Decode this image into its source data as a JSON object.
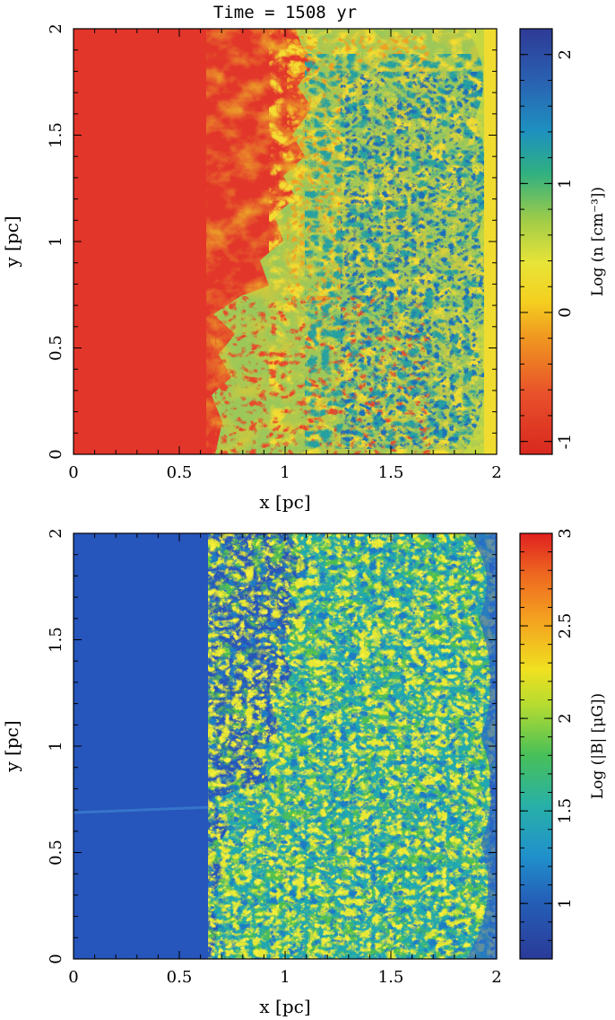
{
  "chart_data": [
    {
      "type": "heatmap",
      "title": "Time = 1508 yr",
      "xlabel": "x [pc]",
      "ylabel": "y [pc]",
      "xlim": [
        0,
        2
      ],
      "ylim": [
        0,
        2
      ],
      "xticks": [
        "0",
        "0.5",
        "1",
        "1.5",
        "2"
      ],
      "yticks": [
        "0",
        "0.5",
        "1",
        "1.5",
        "2"
      ],
      "colorbar": {
        "label": "Log (n [cm⁻³])",
        "range": [
          -1.1,
          2.2
        ],
        "ticks": [
          "-1",
          "0",
          "1",
          "2"
        ],
        "tick_values": [
          -1,
          0,
          1,
          2
        ],
        "colors": [
          "#e03028",
          "#f0a020",
          "#f0e030",
          "#a8d040",
          "#30b080",
          "#2090c8",
          "#3050b0"
        ]
      },
      "description_fields": {
        "ambient_color": "#e2362b",
        "front_x_min": 0.65,
        "front_x_max": 1.9
      }
    },
    {
      "type": "heatmap",
      "title": "",
      "xlabel": "x [pc]",
      "ylabel": "y [pc]",
      "xlim": [
        0,
        2
      ],
      "ylim": [
        0,
        2
      ],
      "xticks": [
        "0",
        "0.5",
        "1",
        "1.5",
        "2"
      ],
      "yticks": [
        "0",
        "0.5",
        "1",
        "1.5",
        "2"
      ],
      "colorbar": {
        "label": "Log (|B| [μG])",
        "range": [
          0.7,
          3.0
        ],
        "ticks": [
          "1",
          "1.5",
          "2",
          "2.5",
          "3"
        ],
        "tick_values": [
          1,
          1.5,
          2,
          2.5,
          3
        ],
        "colors": [
          "#2c3c9c",
          "#2478c8",
          "#20b0b0",
          "#50c050",
          "#c8e030",
          "#f0d020",
          "#f08020",
          "#e02020"
        ]
      },
      "description_fields": {
        "ambient_color": "#2450b8",
        "front_x_min": 0.65,
        "front_x_max": 1.9
      }
    }
  ]
}
